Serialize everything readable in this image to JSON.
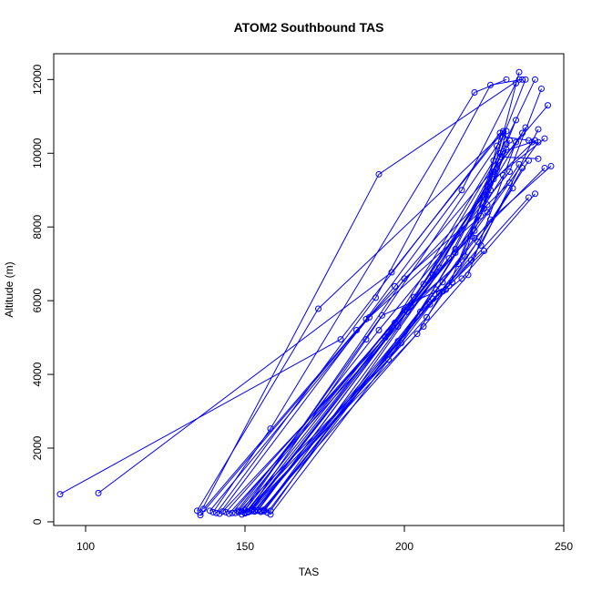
{
  "chart_data": {
    "type": "line",
    "title": "ATOM2 Southbound TAS",
    "xlabel": "TAS",
    "ylabel": "Altitude (m)",
    "xlim": [
      90,
      250
    ],
    "ylim": [
      -100,
      12700
    ],
    "xticks": [
      100,
      150,
      200,
      250
    ],
    "yticks": [
      0,
      2000,
      4000,
      6000,
      8000,
      10000,
      12000
    ],
    "grid": false,
    "color": "#0000ff",
    "marker": "open-circle",
    "series": [
      {
        "x": [
          92,
          180,
          230
        ],
        "y": [
          750,
          4950,
          10550
        ]
      },
      {
        "x": [
          104,
          196,
          231
        ],
        "y": [
          780,
          6770,
          10600
        ]
      },
      {
        "x": [
          135,
          173,
          231
        ],
        "y": [
          300,
          5780,
          10550
        ]
      },
      {
        "x": [
          136,
          192,
          236
        ],
        "y": [
          250,
          9430,
          12000
        ]
      },
      {
        "x": [
          136,
          197,
          245
        ],
        "y": [
          180,
          6390,
          11300
        ]
      },
      {
        "x": [
          140,
          158,
          222,
          232
        ],
        "y": [
          260,
          2530,
          11650,
          12000
        ]
      },
      {
        "x": [
          141,
          191,
          227,
          237
        ],
        "y": [
          240,
          6080,
          11850,
          12000
        ]
      },
      {
        "x": [
          142,
          188,
          218,
          235
        ],
        "y": [
          220,
          5500,
          9000,
          11900
        ]
      },
      {
        "x": [
          145,
          198,
          230,
          241
        ],
        "y": [
          220,
          5300,
          10000,
          12000
        ]
      },
      {
        "x": [
          147,
          192,
          233,
          243
        ],
        "y": [
          240,
          5200,
          9500,
          11750
        ]
      },
      {
        "x": [
          149,
          200,
          225,
          236
        ],
        "y": [
          200,
          6600,
          8500,
          12200
        ]
      },
      {
        "x": [
          150,
          195,
          228,
          238
        ],
        "y": [
          230,
          5150,
          9800,
          12000
        ]
      },
      {
        "x": [
          151,
          201,
          219,
          230
        ],
        "y": [
          260,
          5700,
          7200,
          10450
        ]
      },
      {
        "x": [
          152,
          202,
          225,
          238
        ],
        "y": [
          300,
          5850,
          8800,
          10700
        ]
      },
      {
        "x": [
          153,
          198,
          224,
          242
        ],
        "y": [
          280,
          4900,
          7500,
          10650
        ]
      },
      {
        "x": [
          154,
          203,
          217,
          233
        ],
        "y": [
          320,
          5950,
          7000,
          10350
        ]
      },
      {
        "x": [
          155,
          206,
          220,
          235
        ],
        "y": [
          300,
          5300,
          6700,
          10300
        ]
      },
      {
        "x": [
          156,
          209,
          221,
          237
        ],
        "y": [
          330,
          6050,
          7100,
          9600
        ]
      },
      {
        "x": [
          158,
          211,
          223,
          239
        ],
        "y": [
          200,
          6200,
          7600,
          9800
        ]
      },
      {
        "x": [
          148,
          195,
          226,
          233
        ],
        "y": [
          260,
          4400,
          8600,
          9200
        ]
      },
      {
        "x": [
          149,
          193,
          214,
          228
        ],
        "y": [
          280,
          5600,
          6400,
          9500
        ]
      },
      {
        "x": [
          150,
          199,
          216,
          231
        ],
        "y": [
          250,
          4850,
          7300,
          9400
        ]
      },
      {
        "x": [
          151,
          204,
          212,
          225
        ],
        "y": [
          270,
          5100,
          6250,
          7350
        ]
      },
      {
        "x": [
          152,
          207,
          213,
          234
        ],
        "y": [
          290,
          5550,
          6300,
          9050
        ]
      },
      {
        "x": [
          153,
          205,
          215,
          239
        ],
        "y": [
          310,
          5700,
          6500,
          8800
        ]
      },
      {
        "x": [
          155,
          208,
          218,
          241
        ],
        "y": [
          270,
          5900,
          6600,
          8900
        ]
      },
      {
        "x": [
          156,
          210,
          222,
          244
        ],
        "y": [
          290,
          6300,
          7700,
          9600
        ]
      },
      {
        "x": [
          157,
          212,
          227,
          246
        ],
        "y": [
          250,
          6500,
          8200,
          9650
        ]
      },
      {
        "x": [
          137,
          185,
          227,
          232
        ],
        "y": [
          350,
          5200,
          9000,
          10600
        ]
      },
      {
        "x": [
          139,
          189,
          224,
          229
        ],
        "y": [
          300,
          5550,
          8300,
          10200
        ]
      },
      {
        "x": [
          143,
          194,
          222,
          232
        ],
        "y": [
          280,
          5000,
          7900,
          10100
        ]
      },
      {
        "x": [
          144,
          197,
          226,
          236
        ],
        "y": [
          260,
          5400,
          8400,
          9700
        ]
      },
      {
        "x": [
          146,
          200,
          221,
          242
        ],
        "y": [
          240,
          5750,
          7750,
          10300
        ]
      },
      {
        "x": [
          148,
          203,
          226,
          241
        ],
        "y": [
          300,
          6100,
          9100,
          10350
        ]
      },
      {
        "x": [
          150,
          206,
          228,
          244
        ],
        "y": [
          320,
          6450,
          9300,
          10400
        ]
      },
      {
        "x": [
          152,
          209,
          229,
          237
        ],
        "y": [
          340,
          6700,
          9600,
          10550
        ]
      },
      {
        "x": [
          154,
          211,
          230,
          242
        ],
        "y": [
          300,
          6900,
          9900,
          9850
        ]
      },
      {
        "x": [
          156,
          214,
          231,
          240
        ],
        "y": [
          320,
          7150,
          10050,
          10300
        ]
      },
      {
        "x": [
          158,
          216,
          232,
          235
        ],
        "y": [
          300,
          7400,
          10250,
          10900
        ]
      },
      {
        "x": [
          151,
          188,
          231,
          239
        ],
        "y": [
          280,
          4950,
          10450,
          10350
        ]
      }
    ]
  }
}
